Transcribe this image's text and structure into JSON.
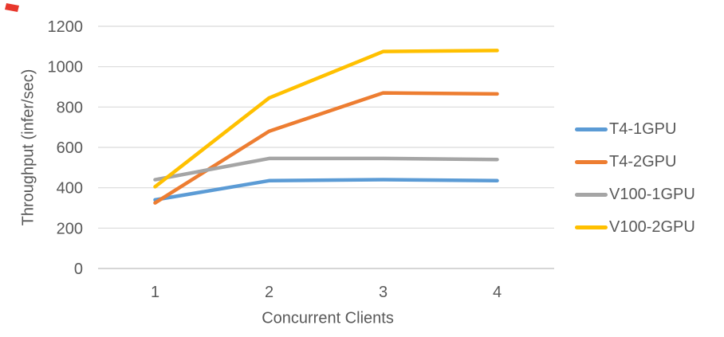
{
  "colors": {
    "background": "#FFFFFF",
    "text": "#595959",
    "gridline": "#D9D9D9",
    "axis_line": "#C9C9C9",
    "artifact_red": "#E8372C"
  },
  "chart_data": {
    "type": "line",
    "title": "",
    "xlabel": "Concurrent Clients",
    "ylabel": "Throughput (infer/sec)",
    "categories": [
      "1",
      "2",
      "3",
      "4"
    ],
    "yticks": [
      0,
      200,
      400,
      600,
      800,
      1000,
      1200
    ],
    "ylim": [
      0,
      1200
    ],
    "grid": "horizontal",
    "legend_position": "right",
    "series": [
      {
        "name": "T4-1GPU",
        "color": "#5B9BD5",
        "values": [
          340,
          435,
          440,
          435
        ]
      },
      {
        "name": "T4-2GPU",
        "color": "#ED7D31",
        "values": [
          325,
          680,
          870,
          865
        ]
      },
      {
        "name": "V100-1GPU",
        "color": "#A5A5A5",
        "values": [
          440,
          545,
          545,
          540
        ]
      },
      {
        "name": "V100-2GPU",
        "color": "#FFC000",
        "values": [
          405,
          845,
          1075,
          1080
        ]
      }
    ]
  }
}
